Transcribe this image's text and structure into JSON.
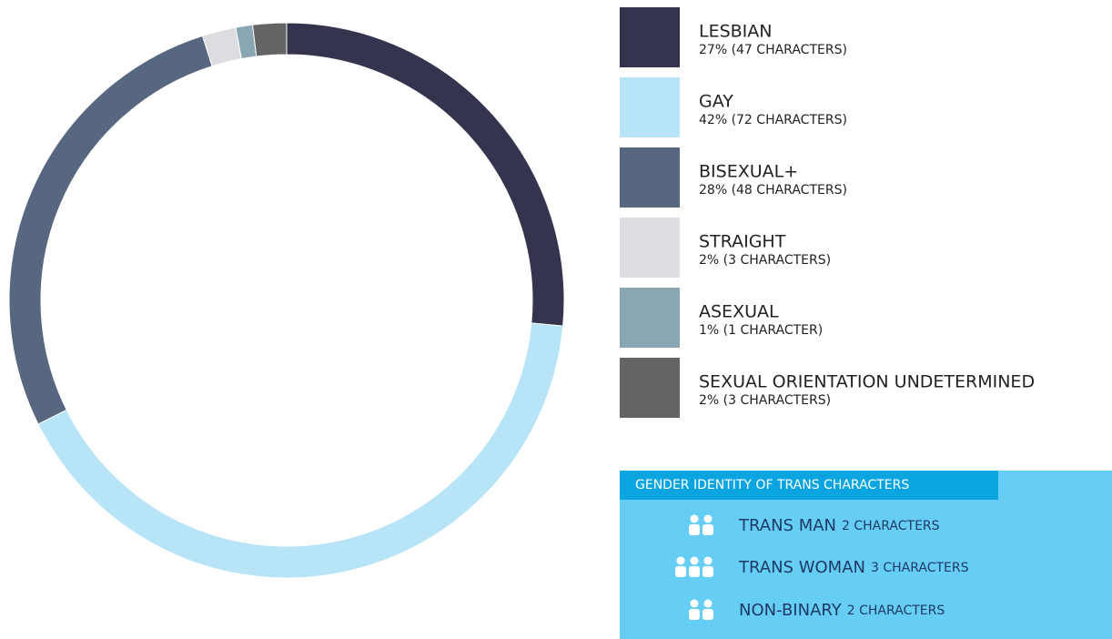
{
  "chart_data": {
    "type": "donut",
    "categories": [
      "LESBIAN",
      "GAY",
      "BISEXUAL+",
      "STRAIGHT",
      "ASEXUAL",
      "SEXUAL ORIENTATION UNDETERMINED"
    ],
    "values": [
      27,
      42,
      28,
      2,
      1,
      2
    ],
    "value_labels": [
      "27% (47 CHARACTERS)",
      "42% (72 CHARACTERS)",
      "28% (48 CHARACTERS)",
      "2% (3 CHARACTERS)",
      "1% (1 CHARACTER)",
      "2% (3 CHARACTERS)"
    ],
    "colors": [
      "#35344f",
      "#b8e4f8",
      "#56677f",
      "#dcdde0",
      "#8aa6b2",
      "#636466"
    ]
  },
  "trans_box": {
    "title": "GENDER IDENTITY OF TRANS CHARACTERS",
    "items": [
      {
        "label": "TRANS MAN",
        "count": 2,
        "count_label": "2 CHARACTERS"
      },
      {
        "label": "TRANS WOMAN",
        "count": 3,
        "count_label": "3 CHARACTERS"
      },
      {
        "label": "NON-BINARY",
        "count": 2,
        "count_label": "2 CHARACTERS"
      }
    ]
  }
}
